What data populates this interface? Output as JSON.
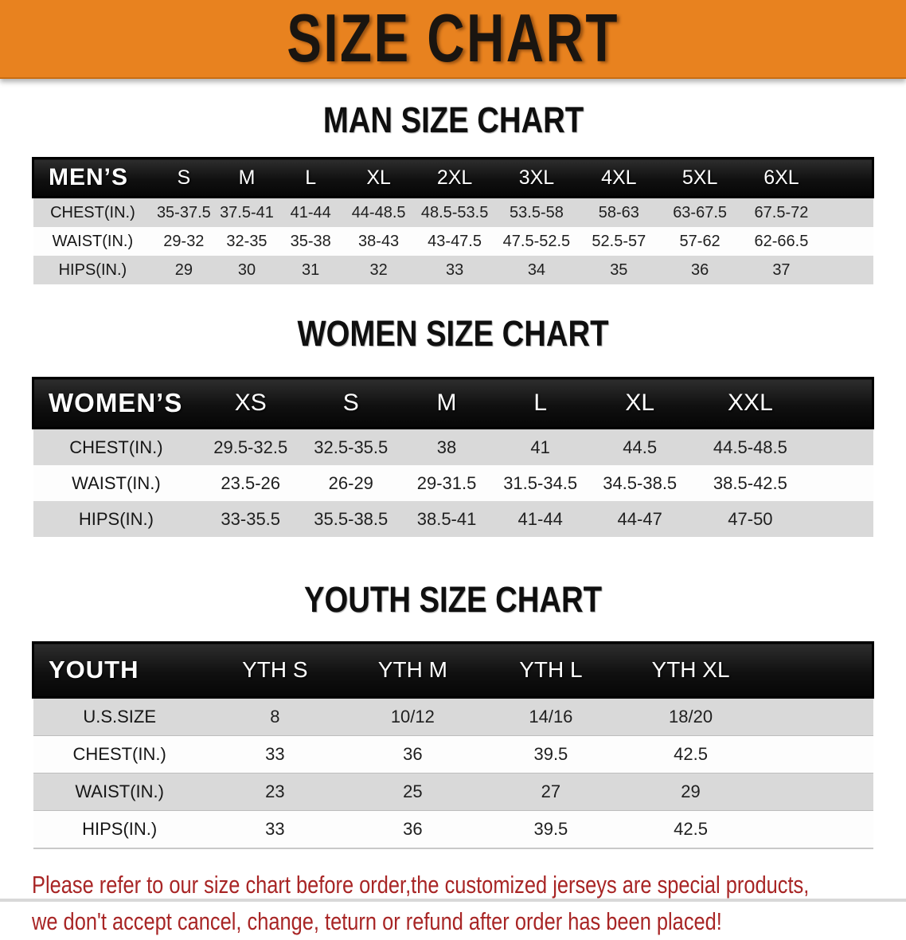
{
  "banner": {
    "title": "SIZE CHART",
    "bg_color": "#e8821f"
  },
  "sections": [
    {
      "heading": "MAN SIZE CHART",
      "header_label": "MEN’S",
      "columns": [
        "S",
        "M",
        "L",
        "XL",
        "2XL",
        "3XL",
        "4XL",
        "5XL",
        "6XL"
      ],
      "rows": [
        {
          "label": "CHEST(IN.)",
          "values": [
            "35-37.5",
            "37.5-41",
            "41-44",
            "44-48.5",
            "48.5-53.5",
            "53.5-58",
            "58-63",
            "63-67.5",
            "67.5-72"
          ]
        },
        {
          "label": "WAIST(IN.)",
          "values": [
            "29-32",
            "32-35",
            "35-38",
            "38-43",
            "43-47.5",
            "47.5-52.5",
            "52.5-57",
            "57-62",
            "62-66.5"
          ]
        },
        {
          "label": "HIPS(IN.)",
          "values": [
            "29",
            "30",
            "31",
            "32",
            "33",
            "34",
            "35",
            "36",
            "37"
          ]
        }
      ]
    },
    {
      "heading": "WOMEN SIZE CHART",
      "header_label": "WOMEN’S",
      "columns": [
        "XS",
        "S",
        "M",
        "L",
        "XL",
        "XXL"
      ],
      "rows": [
        {
          "label": "CHEST(IN.)",
          "values": [
            "29.5-32.5",
            "32.5-35.5",
            "38",
            "41",
            "44.5",
            "44.5-48.5"
          ]
        },
        {
          "label": "WAIST(IN.)",
          "values": [
            "23.5-26",
            "26-29",
            "29-31.5",
            "31.5-34.5",
            "34.5-38.5",
            "38.5-42.5"
          ]
        },
        {
          "label": "HIPS(IN.)",
          "values": [
            "33-35.5",
            "35.5-38.5",
            "38.5-41",
            "41-44",
            "44-47",
            "47-50"
          ]
        }
      ]
    },
    {
      "heading": "YOUTH SIZE CHART",
      "header_label": "YOUTH",
      "columns": [
        "YTH S",
        "YTH M",
        "YTH L",
        "YTH XL"
      ],
      "rows": [
        {
          "label": "U.S.SIZE",
          "values": [
            "8",
            "10/12",
            "14/16",
            "18/20"
          ]
        },
        {
          "label": "CHEST(IN.)",
          "values": [
            "33",
            "36",
            "39.5",
            "42.5"
          ]
        },
        {
          "label": "WAIST(IN.)",
          "values": [
            "23",
            "25",
            "27",
            "29"
          ]
        },
        {
          "label": "HIPS(IN.)",
          "values": [
            "33",
            "36",
            "39.5",
            "42.5"
          ]
        }
      ]
    }
  ],
  "footer_note": {
    "lines": [
      "Please refer to our size chart before order,the customized jerseys are special products,",
      "we don't accept cancel, change, teturn or refund after order has been placed!"
    ],
    "color": "#a82525"
  },
  "colors": {
    "banner_orange": "#e8821f",
    "header_black": "#141414",
    "row_gray": "#d9d9d9",
    "row_white": "#fdfdfd",
    "note_red": "#a82525"
  }
}
